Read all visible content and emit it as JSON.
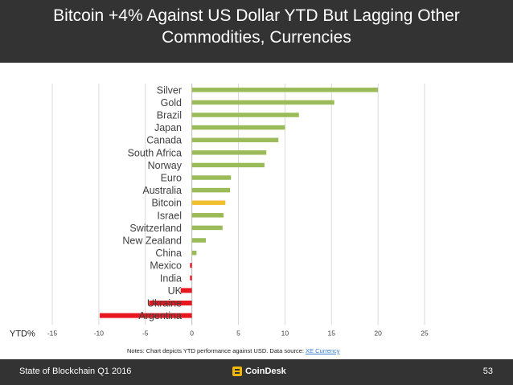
{
  "header": {
    "title_line1": "Bitcoin +4% Against US Dollar YTD But Lagging Other",
    "title_line2": "Commodities, Currencies"
  },
  "colors": {
    "background_bar": "#333333",
    "green": "#9bbb59",
    "bitcoin": "#f0c030",
    "negative": "#e8171f"
  },
  "chart_data": {
    "type": "bar",
    "orientation": "horizontal",
    "title": "Bitcoin +4% Against US Dollar YTD But Lagging Other Commodities, Currencies",
    "xlabel": "YTD%",
    "ylabel": "",
    "xlim": [
      -15,
      25
    ],
    "xticks": [
      -15,
      -10,
      -5,
      0,
      5,
      10,
      15,
      20,
      25
    ],
    "grid": true,
    "categories": [
      "Silver",
      "Gold",
      "Brazil",
      "Japan",
      "Canada",
      "South Africa",
      "Norway",
      "Euro",
      "Australia",
      "Bitcoin",
      "Israel",
      "Switzerland",
      "New Zealand",
      "China",
      "Mexico",
      "India",
      "UK",
      "Ukraine",
      "Argentina"
    ],
    "values": [
      20,
      15.3,
      11.5,
      10,
      9.3,
      8,
      7.8,
      4.2,
      4.1,
      3.6,
      3.4,
      3.3,
      1.5,
      0.5,
      -0.2,
      -0.2,
      -1.2,
      -4.6,
      -9.9
    ],
    "highlight": "Bitcoin"
  },
  "notes": {
    "text": "Notes: Chart depicts YTD performance against USD. Data source: ",
    "link": "XE Currency"
  },
  "footer": {
    "left": "State of Blockchain Q1 2016",
    "brand": "CoinDesk",
    "page_number": "53"
  }
}
